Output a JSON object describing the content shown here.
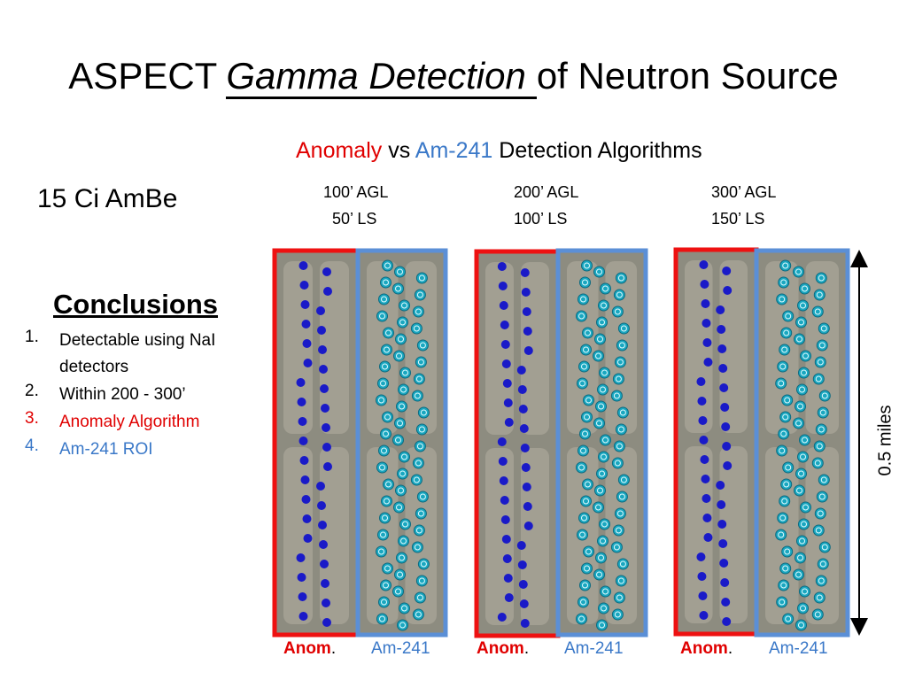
{
  "title": {
    "prefix": "ASPECT",
    "emphasis": "Gamma Detection",
    "suffix": "of Neutron Source"
  },
  "subtitle": {
    "anomaly": "Anomaly",
    "vs": "vs",
    "am241": "Am-241",
    "rest": "Detection Algorithms"
  },
  "source": "15 Ci AmBe",
  "conclusions": {
    "heading": "Conclusions",
    "items": [
      {
        "number": "1.",
        "text": "Detectable using NaI detectors"
      },
      {
        "number": "2.",
        "text": "Within 200 - 300’"
      },
      {
        "number": "3.",
        "text": "Anomaly Algorithm"
      },
      {
        "number": "4.",
        "text": "Am-241 ROI"
      }
    ]
  },
  "flights": [
    {
      "agl": "100’ AGL",
      "ls": "50’ LS"
    },
    {
      "agl": "200’ AGL",
      "ls": "100’ LS"
    },
    {
      "agl": "300’ AGL",
      "ls": "150’ LS"
    }
  ],
  "panel_labels": {
    "anomaly": "Anom",
    "period": ".",
    "am241": "Am-241"
  },
  "scale": "0.5 miles"
}
